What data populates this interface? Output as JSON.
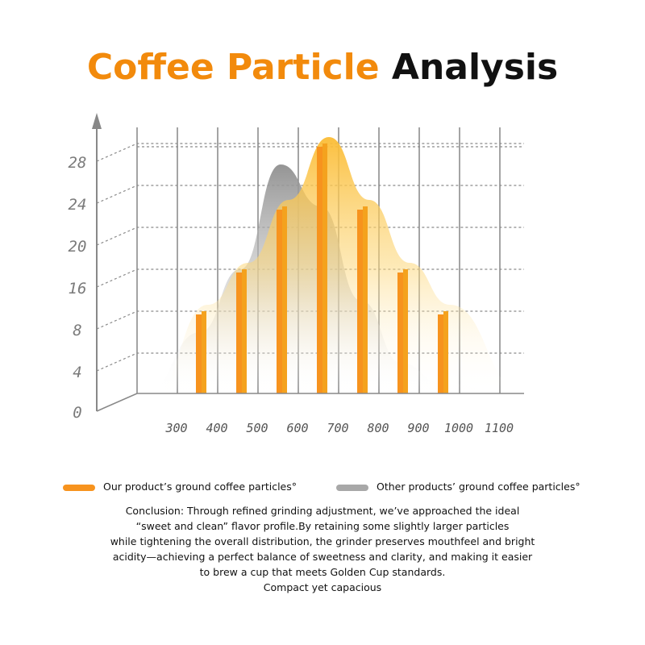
{
  "title": {
    "part1": "Coffee Particle",
    "part2": "Analysis"
  },
  "colors": {
    "ours": "#f7931e",
    "others": "#9a9a9a",
    "title_accent": "#f28a0c",
    "axis": "#888888"
  },
  "chart_data": {
    "type": "bar",
    "title": "Coffee Particle Analysis",
    "xlabel": "",
    "ylabel": "",
    "x_ticks": [
      "300",
      "400",
      "500",
      "600",
      "700",
      "800",
      "900",
      "1000",
      "1100"
    ],
    "y_ticks": [
      "0",
      "4",
      "8",
      "16",
      "20",
      "24",
      "28"
    ],
    "categories": [
      "400",
      "500",
      "600",
      "700",
      "800",
      "900",
      "1000"
    ],
    "series": [
      {
        "name": "Our product’s ground coffee particles°",
        "type": "bar",
        "values": [
          8,
          16,
          22,
          28,
          22,
          16,
          8
        ]
      },
      {
        "name": "Other products’ ground coffee particles°",
        "type": "area",
        "values": [
          6,
          16,
          26,
          22,
          10,
          3,
          1
        ]
      }
    ],
    "grid": true,
    "legend_position": "bottom"
  },
  "legend": {
    "ours": "Our product’s ground coffee particles°",
    "others": "Other products’ ground coffee particles°"
  },
  "conclusion": [
    "Conclusion: Through refined grinding adjustment, we’ve approached the ideal",
    "“sweet and clean” flavor profile.By retaining some slightly larger particles",
    "while tightening the overall distribution, the grinder preserves mouthfeel and bright",
    "acidity—achieving a perfect balance of sweetness and clarity, and making it easier",
    "to brew a cup that meets Golden Cup standards.",
    "Compact yet capacious"
  ]
}
